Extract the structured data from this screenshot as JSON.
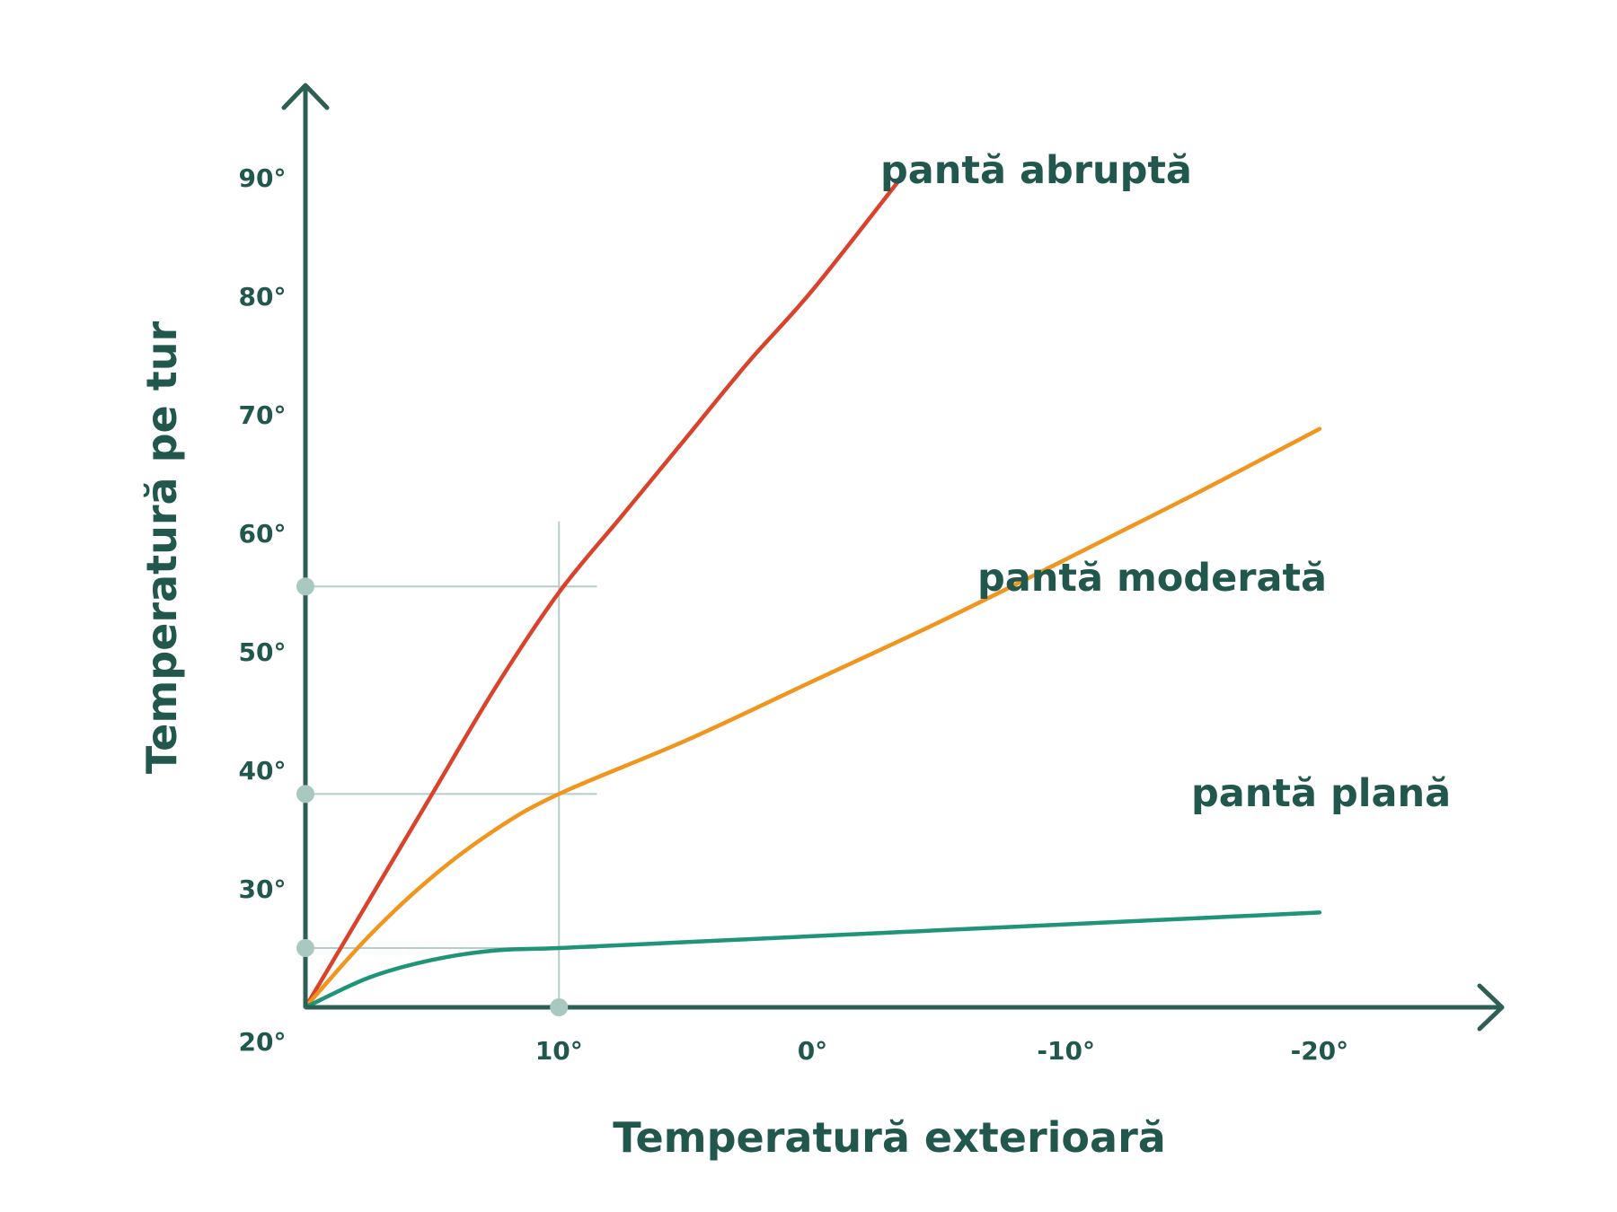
{
  "chart_data": {
    "type": "line",
    "title": "",
    "xlabel": "Temperatură exterioară",
    "ylabel": "Temperatură pe tur",
    "x_ticks": [
      {
        "value": 20,
        "label": "20°"
      },
      {
        "value": 10,
        "label": "10°"
      },
      {
        "value": 0,
        "label": "0°"
      },
      {
        "value": -10,
        "label": "-10°"
      },
      {
        "value": -20,
        "label": "-20°"
      }
    ],
    "y_ticks": [
      {
        "value": 30,
        "label": "30°"
      },
      {
        "value": 40,
        "label": "40°"
      },
      {
        "value": 50,
        "label": "50°"
      },
      {
        "value": 60,
        "label": "60°"
      },
      {
        "value": 70,
        "label": "70°"
      },
      {
        "value": 80,
        "label": "80°"
      },
      {
        "value": 90,
        "label": "90°"
      }
    ],
    "xlim": [
      20,
      -25
    ],
    "ylim": [
      20,
      94
    ],
    "x_reversed": true,
    "grid": false,
    "axis_color": "#2d5f55",
    "series": [
      {
        "name": "pantă abruptă",
        "color": "#d9432c",
        "points": [
          [
            20,
            20
          ],
          [
            17.5,
            29
          ],
          [
            15,
            38
          ],
          [
            12.5,
            47
          ],
          [
            10,
            55
          ],
          [
            7.5,
            61.5
          ],
          [
            5,
            68
          ],
          [
            2.5,
            74.5
          ],
          [
            0,
            80.5
          ],
          [
            -3.5,
            90
          ]
        ]
      },
      {
        "name": "pantă moderată",
        "color": "#f0961e",
        "points": [
          [
            20,
            20
          ],
          [
            17.5,
            26
          ],
          [
            15,
            31
          ],
          [
            12.5,
            35
          ],
          [
            10,
            38
          ],
          [
            5,
            42.5
          ],
          [
            0,
            47.5
          ],
          [
            -5,
            52.5
          ],
          [
            -10,
            57.8
          ],
          [
            -15,
            63.2
          ],
          [
            -20,
            68.8
          ]
        ]
      },
      {
        "name": "pantă plană",
        "color": "#1f9478",
        "points": [
          [
            20,
            20
          ],
          [
            17.5,
            22.5
          ],
          [
            15,
            24
          ],
          [
            12.5,
            24.8
          ],
          [
            10,
            25
          ],
          [
            5,
            25.5
          ],
          [
            0,
            26
          ],
          [
            -5,
            26.5
          ],
          [
            -10,
            27
          ],
          [
            -15,
            27.5
          ],
          [
            -20,
            28
          ]
        ]
      }
    ],
    "reference_lines": {
      "color": "#b5cdc6",
      "vertical_x": 10,
      "vertical_top_y": 61,
      "horizontal": [
        55.5,
        38,
        25
      ],
      "horizontal_end_x": 8.5,
      "marker_color": "#a9c8c0"
    }
  }
}
